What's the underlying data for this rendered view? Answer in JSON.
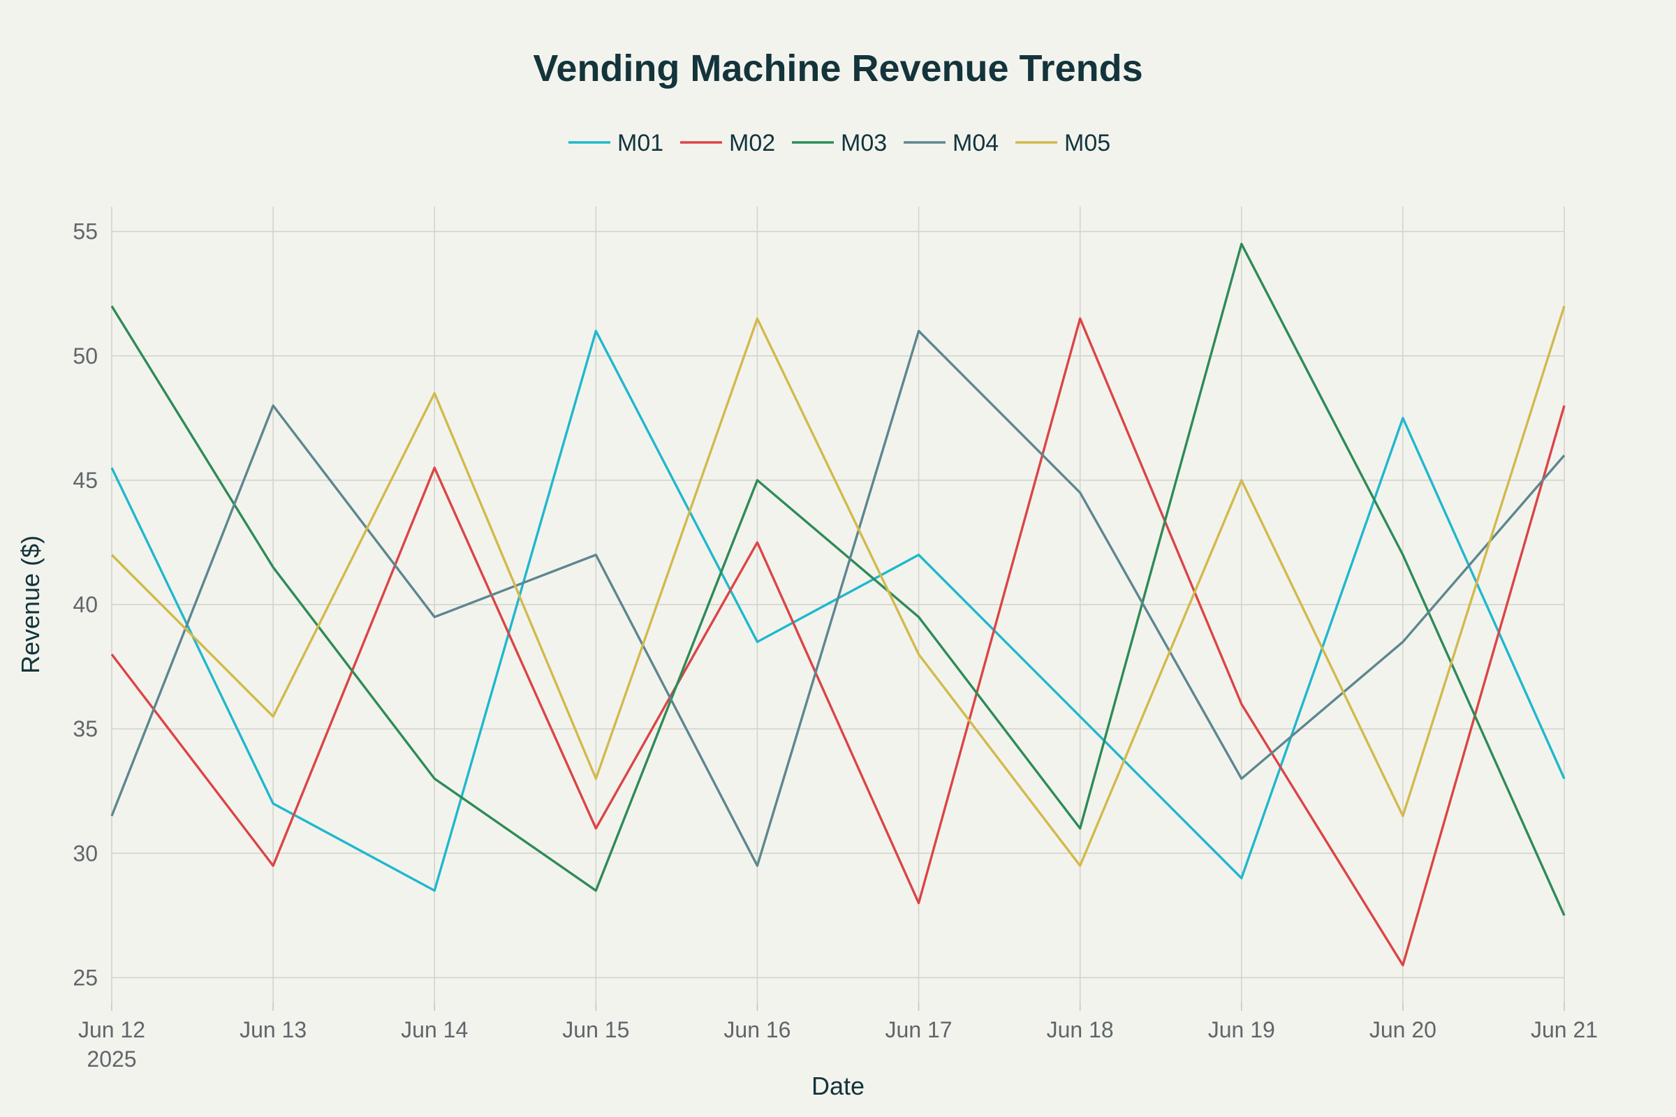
{
  "chart_data": {
    "type": "line",
    "title": "Vending Machine Revenue Trends",
    "xlabel": "Date",
    "ylabel": "Revenue ($)",
    "x": [
      "Jun 12",
      "Jun 13",
      "Jun 14",
      "Jun 15",
      "Jun 16",
      "Jun 17",
      "Jun 18",
      "Jun 19",
      "Jun 20",
      "Jun 21"
    ],
    "x_year_label": "2025",
    "ylim": [
      24,
      56
    ],
    "yticks": [
      25,
      30,
      35,
      40,
      45,
      50,
      55
    ],
    "grid": true,
    "legend_position": "top-center",
    "series": [
      {
        "name": "M01",
        "color": "#1fb8cd",
        "values": [
          45.5,
          32,
          28.5,
          51,
          38.5,
          42,
          35.5,
          29,
          47.5,
          33
        ]
      },
      {
        "name": "M02",
        "color": "#db4545",
        "values": [
          38,
          29.5,
          45.5,
          31,
          42.5,
          28,
          51.5,
          36,
          25.5,
          48
        ]
      },
      {
        "name": "M03",
        "color": "#2e8b57",
        "values": [
          52,
          41.5,
          33,
          28.5,
          45,
          39.5,
          31,
          54.5,
          42,
          27.5
        ]
      },
      {
        "name": "M04",
        "color": "#5d878f",
        "values": [
          31.5,
          48,
          39.5,
          42,
          29.5,
          51,
          44.5,
          33,
          38.5,
          46
        ]
      },
      {
        "name": "M05",
        "color": "#d2ba4c",
        "values": [
          42,
          35.5,
          48.5,
          33,
          51.5,
          38,
          29.5,
          45,
          31.5,
          52
        ]
      }
    ]
  }
}
